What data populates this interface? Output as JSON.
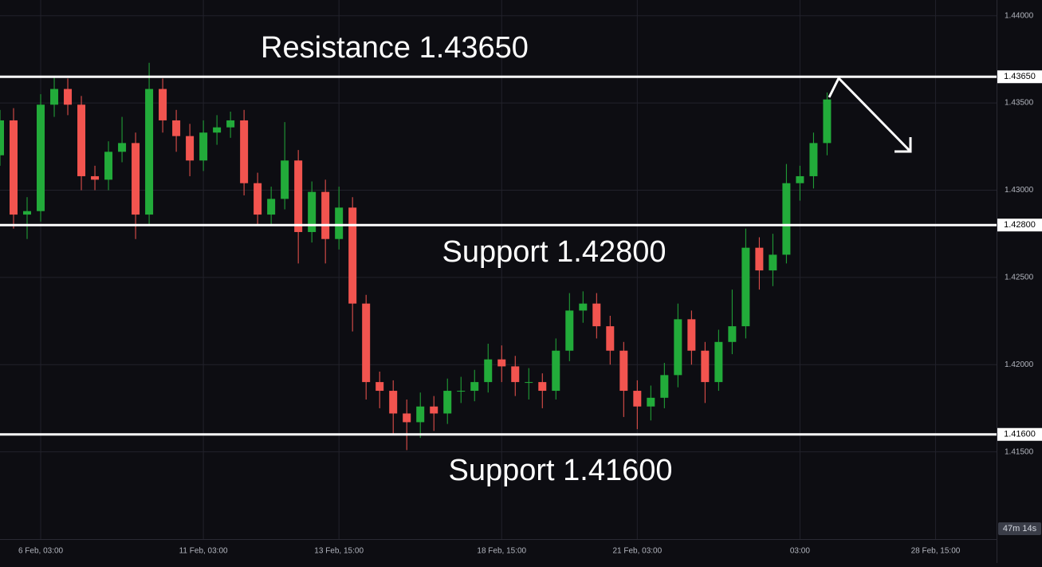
{
  "chart_data": {
    "type": "candlestick",
    "up_color": "#22ab3a",
    "down_color": "#f2544f",
    "grid": true,
    "xlim": [
      0,
      73.5
    ],
    "ylim": [
      1.41,
      1.4409
    ],
    "yticks": [
      {
        "value": 1.415,
        "label": "1.41500"
      },
      {
        "value": 1.42,
        "label": "1.42000"
      },
      {
        "value": 1.425,
        "label": "1.42500"
      },
      {
        "value": 1.43,
        "label": "1.43000"
      },
      {
        "value": 1.435,
        "label": "1.43500"
      },
      {
        "value": 1.44,
        "label": "1.44000"
      }
    ],
    "xticks": [
      {
        "value": 3,
        "label": "6 Feb, 03:00"
      },
      {
        "value": 15,
        "label": "11 Feb, 03:00"
      },
      {
        "value": 25,
        "label": "13 Feb, 15:00"
      },
      {
        "value": 37,
        "label": "18 Feb, 15:00"
      },
      {
        "value": 47,
        "label": "21 Feb, 03:00"
      },
      {
        "value": 59,
        "label": "03:00"
      },
      {
        "value": 69,
        "label": "28 Feb, 15:00"
      }
    ],
    "open": [
      1.432,
      1.434,
      1.4286,
      1.4288,
      1.4349,
      1.4358,
      1.4349,
      1.4308,
      1.4306,
      1.4322,
      1.4327,
      1.4286,
      1.4358,
      1.434,
      1.4331,
      1.4317,
      1.4333,
      1.4336,
      1.434,
      1.4304,
      1.4286,
      1.4295,
      1.4317,
      1.4276,
      1.4299,
      1.4272,
      1.429,
      1.4235,
      1.419,
      1.4185,
      1.4172,
      1.4167,
      1.4176,
      1.4172,
      1.4185,
      1.4185,
      1.419,
      1.4203,
      1.4199,
      1.419,
      1.419,
      1.4185,
      1.4208,
      1.4231,
      1.4235,
      1.4222,
      1.4208,
      1.4185,
      1.4176,
      1.4181,
      1.4194,
      1.4226,
      1.4208,
      1.419,
      1.4213,
      1.4222,
      1.4267,
      1.4254,
      1.4263,
      1.4304,
      1.4308,
      1.4327
    ],
    "high": [
      1.4346,
      1.4347,
      1.4296,
      1.4355,
      1.4365,
      1.4364,
      1.4354,
      1.4314,
      1.4328,
      1.4342,
      1.4333,
      1.4373,
      1.4364,
      1.4346,
      1.4338,
      1.434,
      1.4343,
      1.4345,
      1.4346,
      1.431,
      1.4302,
      1.4339,
      1.4323,
      1.4305,
      1.4306,
      1.4302,
      1.4296,
      1.424,
      1.4196,
      1.4191,
      1.418,
      1.4184,
      1.4182,
      1.4192,
      1.4193,
      1.4197,
      1.4212,
      1.4211,
      1.4205,
      1.4198,
      1.4195,
      1.4215,
      1.4241,
      1.4242,
      1.4241,
      1.4228,
      1.4213,
      1.4191,
      1.4188,
      1.4201,
      1.4235,
      1.4231,
      1.4213,
      1.422,
      1.4243,
      1.4278,
      1.4273,
      1.4275,
      1.4315,
      1.4314,
      1.4333,
      1.4356
    ],
    "low": [
      1.4314,
      1.4278,
      1.4272,
      1.4282,
      1.4342,
      1.4343,
      1.43,
      1.43,
      1.43,
      1.4316,
      1.4272,
      1.428,
      1.4333,
      1.4322,
      1.4308,
      1.4311,
      1.4326,
      1.433,
      1.4297,
      1.428,
      1.428,
      1.4289,
      1.4258,
      1.427,
      1.4258,
      1.4266,
      1.4219,
      1.418,
      1.4175,
      1.416,
      1.4151,
      1.4158,
      1.4162,
      1.4166,
      1.4178,
      1.4179,
      1.4184,
      1.419,
      1.4182,
      1.418,
      1.4175,
      1.418,
      1.4202,
      1.4224,
      1.4215,
      1.42,
      1.417,
      1.4163,
      1.4168,
      1.4175,
      1.4187,
      1.42,
      1.4178,
      1.4185,
      1.4206,
      1.4215,
      1.4243,
      1.4245,
      1.4258,
      1.4294,
      1.4301,
      1.432
    ],
    "close": [
      1.434,
      1.4286,
      1.4288,
      1.4349,
      1.4358,
      1.4349,
      1.4308,
      1.4306,
      1.4322,
      1.4327,
      1.4286,
      1.4358,
      1.434,
      1.4331,
      1.4317,
      1.4333,
      1.4336,
      1.434,
      1.4304,
      1.4286,
      1.4295,
      1.4317,
      1.4276,
      1.4299,
      1.4272,
      1.429,
      1.4235,
      1.419,
      1.4185,
      1.4172,
      1.4167,
      1.4176,
      1.4172,
      1.4185,
      1.4185,
      1.419,
      1.4203,
      1.4199,
      1.419,
      1.419,
      1.4185,
      1.4208,
      1.4231,
      1.4235,
      1.4222,
      1.4208,
      1.4185,
      1.4176,
      1.4181,
      1.4194,
      1.4226,
      1.4208,
      1.419,
      1.4213,
      1.4222,
      1.4267,
      1.4254,
      1.4263,
      1.4304,
      1.4308,
      1.4327,
      1.4352
    ],
    "levels": [
      {
        "value": 1.4365,
        "label": "1.43650",
        "annotation": "Resistance 1.43650"
      },
      {
        "value": 1.428,
        "label": "1.42800",
        "annotation": "Support 1.42800"
      },
      {
        "value": 1.416,
        "label": "1.41600",
        "annotation": "Support 1.41600"
      }
    ],
    "countdown": "47m 14s"
  }
}
